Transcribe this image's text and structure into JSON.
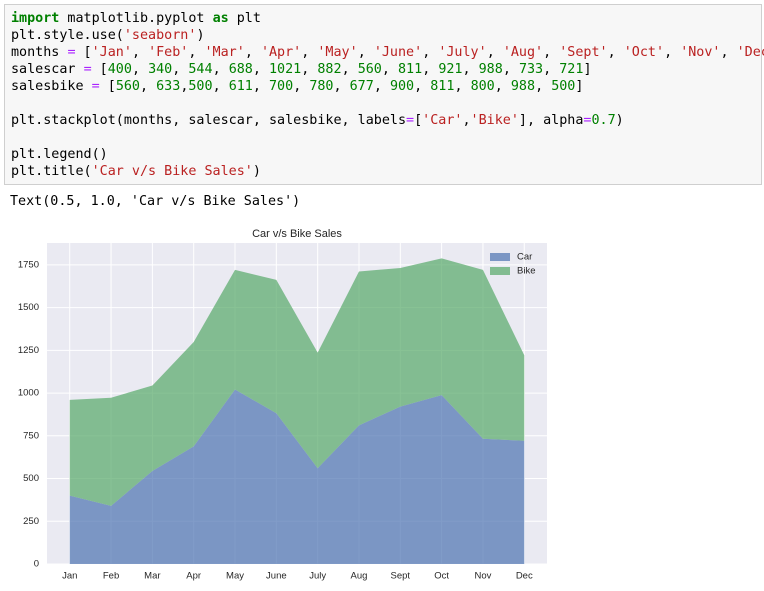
{
  "code": {
    "lines": [
      [
        {
          "text": "import",
          "color": "#008000",
          "bold": true
        },
        " matplotlib.pyplot ",
        {
          "text": "as",
          "color": "#008000",
          "bold": true
        },
        " plt"
      ],
      [
        "plt.style.use(",
        {
          "text": "'seaborn'",
          "color": "#ba2121"
        },
        ")"
      ],
      [
        "months ",
        {
          "text": "=",
          "color": "#aa22ff"
        },
        " [",
        {
          "text": "'Jan'",
          "color": "#ba2121"
        },
        ", ",
        {
          "text": "'Feb'",
          "color": "#ba2121"
        },
        ", ",
        {
          "text": "'Mar'",
          "color": "#ba2121"
        },
        ", ",
        {
          "text": "'Apr'",
          "color": "#ba2121"
        },
        ", ",
        {
          "text": "'May'",
          "color": "#ba2121"
        },
        ", ",
        {
          "text": "'June'",
          "color": "#ba2121"
        },
        ", ",
        {
          "text": "'July'",
          "color": "#ba2121"
        },
        ", ",
        {
          "text": "'Aug'",
          "color": "#ba2121"
        },
        ", ",
        {
          "text": "'Sept'",
          "color": "#ba2121"
        },
        ", ",
        {
          "text": "'Oct'",
          "color": "#ba2121"
        },
        ", ",
        {
          "text": "'Nov'",
          "color": "#ba2121"
        },
        ", ",
        {
          "text": "'Dec'",
          "color": "#ba2121"
        },
        "]"
      ],
      [
        "salescar ",
        {
          "text": "=",
          "color": "#aa22ff"
        },
        " [",
        {
          "text": "400",
          "color": "#008000"
        },
        ", ",
        {
          "text": "340",
          "color": "#008000"
        },
        ", ",
        {
          "text": "544",
          "color": "#008000"
        },
        ", ",
        {
          "text": "688",
          "color": "#008000"
        },
        ", ",
        {
          "text": "1021",
          "color": "#008000"
        },
        ", ",
        {
          "text": "882",
          "color": "#008000"
        },
        ", ",
        {
          "text": "560",
          "color": "#008000"
        },
        ", ",
        {
          "text": "811",
          "color": "#008000"
        },
        ", ",
        {
          "text": "921",
          "color": "#008000"
        },
        ", ",
        {
          "text": "988",
          "color": "#008000"
        },
        ", ",
        {
          "text": "733",
          "color": "#008000"
        },
        ", ",
        {
          "text": "721",
          "color": "#008000"
        },
        "]"
      ],
      [
        "salesbike ",
        {
          "text": "=",
          "color": "#aa22ff"
        },
        " [",
        {
          "text": "560",
          "color": "#008000"
        },
        ", ",
        {
          "text": "633",
          "color": "#008000"
        },
        ",",
        {
          "text": "500",
          "color": "#008000"
        },
        ", ",
        {
          "text": "611",
          "color": "#008000"
        },
        ", ",
        {
          "text": "700",
          "color": "#008000"
        },
        ", ",
        {
          "text": "780",
          "color": "#008000"
        },
        ", ",
        {
          "text": "677",
          "color": "#008000"
        },
        ", ",
        {
          "text": "900",
          "color": "#008000"
        },
        ", ",
        {
          "text": "811",
          "color": "#008000"
        },
        ", ",
        {
          "text": "800",
          "color": "#008000"
        },
        ", ",
        {
          "text": "988",
          "color": "#008000"
        },
        ", ",
        {
          "text": "500",
          "color": "#008000"
        },
        "]"
      ],
      [],
      [
        "plt.stackplot(months, salescar, salesbike, labels",
        {
          "text": "=",
          "color": "#aa22ff"
        },
        "[",
        {
          "text": "'Car'",
          "color": "#ba2121"
        },
        ",",
        {
          "text": "'Bike'",
          "color": "#ba2121"
        },
        "], alpha",
        {
          "text": "=",
          "color": "#aa22ff"
        },
        {
          "text": "0.7",
          "color": "#008000"
        },
        ")"
      ],
      [],
      [
        "plt.legend()"
      ],
      [
        "plt.title(",
        {
          "text": "'Car v/s Bike Sales'",
          "color": "#ba2121"
        },
        ")"
      ]
    ]
  },
  "output": {
    "text": "Text(0.5, 1.0, 'Car v/s Bike Sales')"
  },
  "chart_data": {
    "type": "stackplot",
    "title": "Car v/s Bike Sales",
    "categories": [
      "Jan",
      "Feb",
      "Mar",
      "Apr",
      "May",
      "June",
      "July",
      "Aug",
      "Sept",
      "Oct",
      "Nov",
      "Dec"
    ],
    "series": [
      {
        "name": "Car",
        "color": "#4c72b0",
        "values": [
          400,
          340,
          544,
          688,
          1021,
          882,
          560,
          811,
          921,
          988,
          733,
          721
        ]
      },
      {
        "name": "Bike",
        "color": "#55a868",
        "values": [
          560,
          633,
          500,
          611,
          700,
          780,
          677,
          900,
          811,
          800,
          988,
          500
        ]
      }
    ],
    "alpha": 0.7,
    "ylim": [
      0,
      1878
    ],
    "yticks": [
      0,
      250,
      500,
      750,
      1000,
      1250,
      1500,
      1750
    ],
    "grid": true,
    "legend": "upper right"
  }
}
